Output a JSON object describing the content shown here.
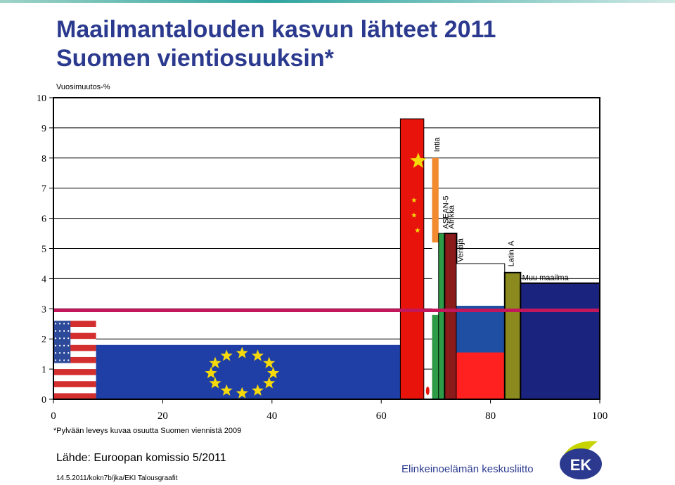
{
  "header": {
    "title_line1": "Maailmantalouden kasvun lähteet 2011",
    "title_line2": "Suomen vientiosuuksin*"
  },
  "chart_data": {
    "type": "bar",
    "variable_width": true,
    "title": "Maailmantalouden kasvun lähteet 2011 Suomen vientiosuuksin*",
    "ylabel": "Vuosimuutos-%",
    "xlabel": "",
    "xlim": [
      0,
      100
    ],
    "ylim": [
      0,
      10
    ],
    "xticks": [
      0,
      20,
      40,
      60,
      80,
      100
    ],
    "yticks": [
      0,
      1,
      2,
      3,
      4,
      5,
      6,
      7,
      8,
      9,
      10
    ],
    "grid": true,
    "reference_line": {
      "value": 2.95,
      "color": "#c2185b"
    },
    "colors": {
      "usa": "#d32f2f",
      "eu": "#1f3fa6",
      "china": "#e8140c",
      "india": "#f28a30",
      "asean": "#2e9b47",
      "africa": "#8b1a1a",
      "russia_blue": "#1f4fa3",
      "russia_red": "#ff2020",
      "latin": "#8a8a1e",
      "rest": "#1a237e"
    },
    "bars": [
      {
        "name": "",
        "x_start": 0,
        "x_end": 7.8,
        "value": 2.6,
        "style": "usa"
      },
      {
        "name": "",
        "x_start": 7.8,
        "x_end": 63.5,
        "value": 1.8,
        "style": "eu"
      },
      {
        "name": "",
        "x_start": 63.5,
        "x_end": 67.8,
        "value": 9.3,
        "style": "china"
      },
      {
        "name": "Intia",
        "x_start": 69.3,
        "x_end": 70.5,
        "value": 8.0,
        "style": "india"
      },
      {
        "name": "ASEAN-5",
        "x_start": 70.5,
        "x_end": 71.6,
        "value": 5.5,
        "style": "asean"
      },
      {
        "name": "Afrikka",
        "x_start": 71.6,
        "x_end": 73.8,
        "value": 5.5,
        "style": "africa"
      },
      {
        "name": "Venäjä",
        "x_start": 73.8,
        "x_end": 82.6,
        "value": 3.1,
        "style": "russia"
      },
      {
        "name": "Latin. A",
        "x_start": 82.6,
        "x_end": 85.5,
        "value": 4.2,
        "style": "latin"
      },
      {
        "name": "Muu maailma",
        "x_start": 85.5,
        "x_end": 100,
        "value": 3.85,
        "style": "rest"
      }
    ]
  },
  "footer": {
    "footnote": "*Pylvään leveys kuvaa osuutta Suomen viennistä 2009",
    "source": "Lähde: Euroopan komissio 5/2011",
    "credits": "14.5.2011/kokn7b/jka/EKI Talousgraafit",
    "organization": "Elinkeinoelämän keskusliitto",
    "logo_text": "EK"
  }
}
